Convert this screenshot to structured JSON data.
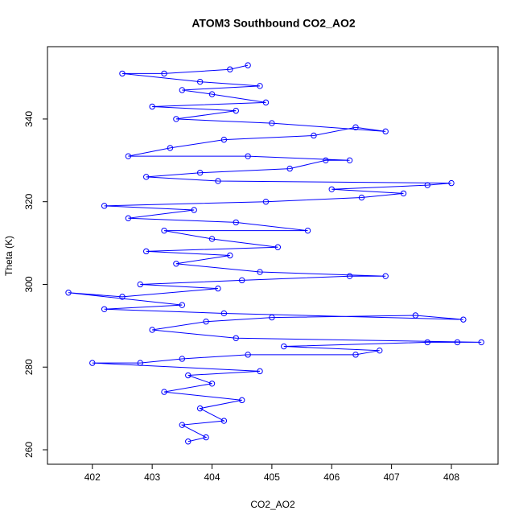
{
  "chart_data": {
    "type": "line",
    "title": "ATOM3 Southbound CO2_AO2",
    "x_label": "CO2_AO2",
    "y_label": "Theta (K)",
    "markers": true,
    "grid": false,
    "xlim": [
      401.25,
      408.78
    ],
    "ylim": [
      256.5,
      357.5
    ],
    "xticks": [
      402,
      403,
      404,
      405,
      406,
      407,
      408
    ],
    "yticks": [
      260,
      280,
      300,
      320,
      340
    ],
    "series": [
      {
        "color": "#0000ff",
        "x": [
          403.6,
          403.9,
          403.5,
          404.2,
          403.8,
          404.5,
          403.2,
          404.0,
          403.6,
          404.8,
          402.0,
          402.8,
          403.5,
          404.6,
          406.4,
          406.8,
          405.2,
          407.6,
          408.1,
          408.5,
          404.4,
          403.0,
          403.9,
          405.0,
          407.4,
          408.2,
          404.2,
          402.2,
          403.5,
          401.6,
          402.5,
          404.1,
          402.8,
          404.5,
          406.3,
          406.9,
          404.8,
          403.4,
          404.3,
          402.9,
          405.1,
          404.0,
          403.2,
          405.6,
          404.4,
          402.6,
          403.7,
          402.2,
          404.9,
          406.5,
          407.2,
          406.0,
          407.6,
          408.0,
          404.1,
          402.9,
          403.8,
          405.3,
          405.9,
          406.3,
          404.6,
          402.6,
          403.3,
          404.2,
          405.7,
          406.4,
          406.9,
          405.0,
          403.4,
          404.4,
          403.0,
          404.9,
          404.0,
          403.5,
          404.8,
          403.8,
          402.5,
          403.2,
          404.3,
          404.6
        ],
        "values": [
          262,
          263,
          266,
          267,
          270,
          272,
          274,
          276,
          278,
          279,
          281,
          281,
          282,
          283,
          283,
          284,
          285,
          286,
          286,
          286,
          287,
          289,
          291,
          292,
          292.5,
          291.5,
          293,
          294,
          295,
          298,
          297,
          299,
          300,
          301,
          302,
          302,
          303,
          305,
          307,
          308,
          309,
          311,
          313,
          313,
          315,
          316,
          318,
          319,
          320,
          321,
          322,
          323,
          324,
          324.5,
          325,
          326,
          327,
          328,
          330,
          330,
          331,
          331,
          333,
          335,
          336,
          338,
          337,
          339,
          340,
          342,
          343,
          344,
          346,
          347,
          348,
          349,
          351,
          351,
          352,
          353
        ]
      }
    ]
  }
}
